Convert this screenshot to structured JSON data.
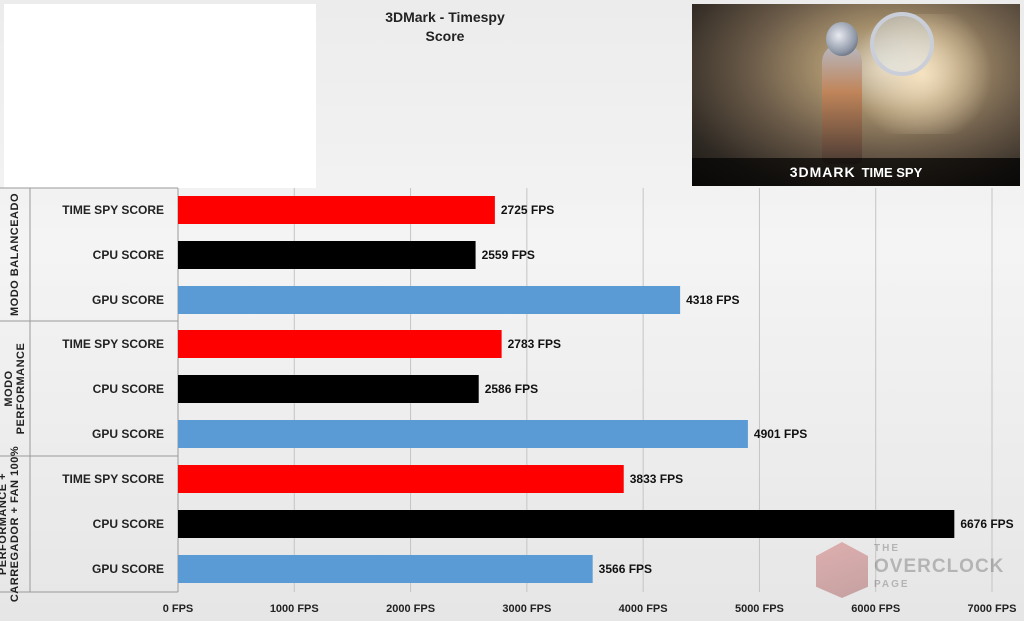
{
  "title": "3DMark - Timespy",
  "subtitle": "Score",
  "banner": {
    "brand": "3DMARK",
    "product": "TIME SPY"
  },
  "watermark": {
    "line1": "THE",
    "line2": "OVERCLOCK",
    "line3": "PAGE"
  },
  "colors": {
    "time_spy": "#ff0000",
    "cpu": "#000000",
    "gpu": "#5b9bd5"
  },
  "chart_data": {
    "type": "bar",
    "orientation": "horizontal",
    "title": "3DMark - Timespy",
    "subtitle": "Score",
    "unit": "FPS",
    "xlim": [
      0,
      7000
    ],
    "x_ticks": [
      "0 FPS",
      "1000 FPS",
      "2000 FPS",
      "3000 FPS",
      "4000 FPS",
      "5000 FPS",
      "6000 FPS",
      "7000 FPS"
    ],
    "grid": true,
    "groups": [
      {
        "label": "MODO BALANCEADO",
        "bars": [
          {
            "category": "TIME SPY SCORE",
            "value": 2725,
            "label": "2725 FPS",
            "color": "#ff0000"
          },
          {
            "category": "CPU SCORE",
            "value": 2559,
            "label": "2559 FPS",
            "color": "#000000"
          },
          {
            "category": "GPU SCORE",
            "value": 4318,
            "label": "4318 FPS",
            "color": "#5b9bd5"
          }
        ]
      },
      {
        "label": "MODO PERFORMANCE",
        "bars": [
          {
            "category": "TIME SPY SCORE",
            "value": 2783,
            "label": "2783 FPS",
            "color": "#ff0000"
          },
          {
            "category": "CPU SCORE",
            "value": 2586,
            "label": "2586 FPS",
            "color": "#000000"
          },
          {
            "category": "GPU SCORE",
            "value": 4901,
            "label": "4901 FPS",
            "color": "#5b9bd5"
          }
        ]
      },
      {
        "label": "PERFORMANCE + CARREGADOR + FAN 100%",
        "bars": [
          {
            "category": "TIME SPY SCORE",
            "value": 3833,
            "label": "3833 FPS",
            "color": "#ff0000"
          },
          {
            "category": "CPU SCORE",
            "value": 6676,
            "label": "6676 FPS",
            "color": "#000000"
          },
          {
            "category": "GPU SCORE",
            "value": 3566,
            "label": "3566 FPS",
            "color": "#5b9bd5"
          }
        ]
      }
    ]
  }
}
